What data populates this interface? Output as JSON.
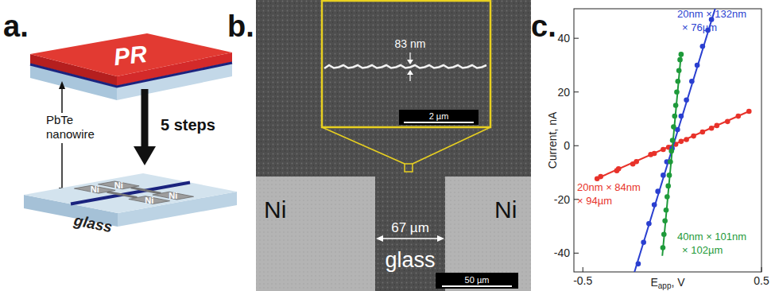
{
  "panel_a": {
    "label": "a.",
    "layer_label": "PR",
    "nanowire_label": [
      "PbTe",
      "nanowire"
    ],
    "steps_label": "5 steps",
    "substrate_label": "glass",
    "pad_label": "Ni"
  },
  "panel_b": {
    "label": "b.",
    "pad_labels": [
      "Ni",
      "Ni"
    ],
    "gap_label": "67 µm",
    "substrate_label": "glass",
    "scale_bar": "50 µm",
    "inset_width": "83 nm",
    "inset_scale_bar": "2 µm"
  },
  "chart_data": {
    "type": "scatter",
    "title": "c.",
    "xlabel": [
      "E",
      "app",
      ", V"
    ],
    "ylabel": "Current, nA",
    "xlim": [
      -0.55,
      0.5
    ],
    "ylim": [
      -47,
      51
    ],
    "xticks": [
      -0.5,
      0.5
    ],
    "yticks": [
      -40,
      -20,
      0,
      20,
      40
    ],
    "grid": false,
    "marker": "circle",
    "series": [
      {
        "name": "20nm × 84nm\n× 94µm",
        "color": "#e8322a",
        "x": [
          -0.42,
          -0.4,
          -0.31,
          -0.3,
          -0.22,
          -0.2,
          -0.12,
          -0.1,
          -0.05,
          -0.02,
          0.02,
          0.05,
          0.08,
          0.12,
          0.17,
          0.22,
          0.25,
          0.31,
          0.37,
          0.43
        ],
        "values": [
          -12.3,
          -11.5,
          -9.3,
          -8.6,
          -6.8,
          -5.9,
          -3.3,
          -2.9,
          -1.4,
          -0.6,
          0.5,
          1.6,
          2.3,
          3.6,
          5.1,
          6.5,
          7.5,
          9.0,
          11.0,
          12.8
        ],
        "fit_x": [
          -0.42,
          0.43
        ],
        "fit_values": [
          -12.2,
          12.8
        ]
      },
      {
        "name": "20nm × 132nm\n× 76µm",
        "color": "#2a3fd0",
        "x": [
          -0.19,
          -0.16,
          -0.13,
          -0.1,
          -0.08,
          -0.05,
          -0.03,
          0.0,
          0.03,
          0.05,
          0.08,
          0.11,
          0.14,
          0.17,
          0.2,
          0.22
        ],
        "values": [
          -44,
          -36,
          -29,
          -22,
          -17,
          -11,
          -6,
          -1,
          6,
          11,
          17,
          24,
          30,
          37,
          43,
          47
        ],
        "fit_x": [
          -0.22,
          0.245
        ],
        "fit_values": [
          -49,
          52
        ]
      },
      {
        "name": "40nm × 101nm\n× 102µm",
        "color": "#1e9a3a",
        "x": [
          -0.052,
          -0.046,
          -0.04,
          -0.034,
          -0.028,
          -0.022,
          -0.016,
          -0.01,
          -0.004,
          0.002,
          0.008,
          0.014,
          0.02,
          0.026,
          0.032,
          0.038,
          0.044,
          0.05
        ],
        "values": [
          -38,
          -33,
          -28,
          -24,
          -19,
          -15,
          -11,
          -6,
          -2,
          2,
          7,
          11,
          15,
          20,
          24,
          28,
          32,
          34
        ],
        "fit_x": [
          -0.055,
          0.05
        ],
        "fit_values": [
          -41,
          34
        ]
      }
    ]
  }
}
